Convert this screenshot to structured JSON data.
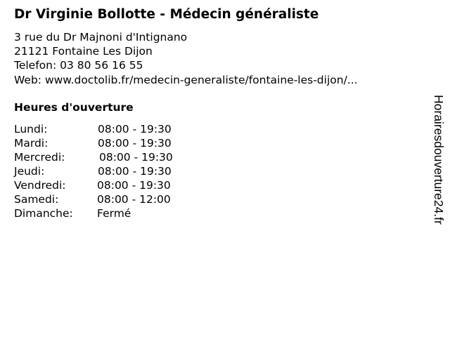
{
  "title": "Dr Virginie Bollotte - Médecin généraliste",
  "address_line1": "3 rue du Dr Majnoni d'Intignano",
  "address_line2": "21121 Fontaine Les Dijon",
  "phone": "Telefon: 03 80 56 16 55",
  "web": "Web: www.doctolib.fr/medecin-generaliste/fontaine-les-dijon/...",
  "hours_heading": "Heures d'ouverture",
  "hours": [
    {
      "day": "Lundi:",
      "time": "08:00 - 19:30"
    },
    {
      "day": "Mardi:",
      "time": "08:00 - 19:30"
    },
    {
      "day": "Mercredi:",
      "time": "08:00 - 19:30"
    },
    {
      "day": "Jeudi:",
      "time": "08:00 - 19:30"
    },
    {
      "day": "Vendredi:",
      "time": "08:00 - 19:30"
    },
    {
      "day": "Samedi:",
      "time": "08:00 - 12:00"
    },
    {
      "day": "Dimanche:",
      "time": "Fermé"
    }
  ],
  "site_brand": "Horairesdouverture24.fr"
}
